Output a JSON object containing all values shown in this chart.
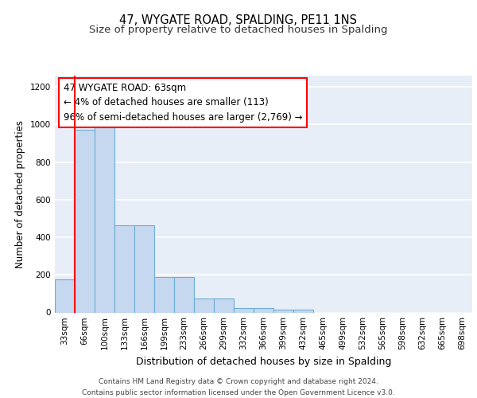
{
  "title": "47, WYGATE ROAD, SPALDING, PE11 1NS",
  "subtitle": "Size of property relative to detached houses in Spalding",
  "xlabel": "Distribution of detached houses by size in Spalding",
  "ylabel": "Number of detached properties",
  "categories": [
    "33sqm",
    "66sqm",
    "100sqm",
    "133sqm",
    "166sqm",
    "199sqm",
    "233sqm",
    "266sqm",
    "299sqm",
    "332sqm",
    "366sqm",
    "399sqm",
    "432sqm",
    "465sqm",
    "499sqm",
    "532sqm",
    "565sqm",
    "598sqm",
    "632sqm",
    "665sqm",
    "698sqm"
  ],
  "bar_heights": [
    175,
    970,
    1000,
    465,
    465,
    190,
    190,
    75,
    75,
    22,
    22,
    15,
    15,
    0,
    0,
    0,
    0,
    0,
    0,
    0,
    0
  ],
  "bar_color": "#c5d8f0",
  "bar_edge_color": "#6aaed6",
  "red_line_index": 1,
  "annotation_text": "47 WYGATE ROAD: 63sqm\n← 4% of detached houses are smaller (113)\n96% of semi-detached houses are larger (2,769) →",
  "ylim": [
    0,
    1260
  ],
  "yticks": [
    0,
    200,
    400,
    600,
    800,
    1000,
    1200
  ],
  "footer": "Contains HM Land Registry data © Crown copyright and database right 2024.\nContains public sector information licensed under the Open Government Licence v3.0.",
  "fig_bg_color": "#ffffff",
  "ax_bg_color": "#e8eef8",
  "grid_color": "#ffffff",
  "title_fontsize": 10.5,
  "subtitle_fontsize": 9.5,
  "ylabel_fontsize": 8.5,
  "xlabel_fontsize": 9,
  "tick_fontsize": 7.5,
  "footer_fontsize": 6.5,
  "ann_fontsize": 8.5
}
